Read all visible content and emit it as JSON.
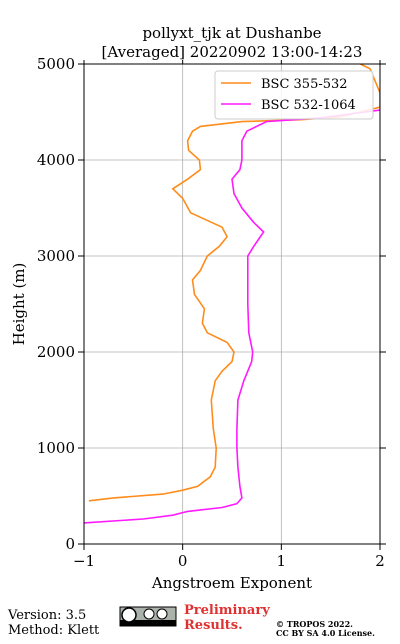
{
  "chart_data": {
    "type": "line",
    "title": "pollyxt_tjk at Dushanbe",
    "subtitle": "[Averaged] 20220902 13:00-14:23",
    "x_label": "Angstroem Exponent",
    "y_label": "Height (m)",
    "xlim": [
      -1,
      2
    ],
    "xticks": [
      {
        "value": -1,
        "label": "−1"
      },
      0,
      1,
      2
    ],
    "ylim": [
      0,
      5000
    ],
    "yticks": [
      0,
      1000,
      2000,
      3000,
      4000,
      5000
    ],
    "grid": true,
    "legend": "upper right",
    "series": [
      {
        "name": "BSC 355-532",
        "color": "#ff8c1a",
        "heights": [
          450,
          480,
          520,
          560,
          600,
          700,
          800,
          1000,
          1200,
          1500,
          1700,
          1800,
          1900,
          2000,
          2100,
          2200,
          2300,
          2450,
          2600,
          2750,
          2850,
          3000,
          3100,
          3200,
          3300,
          3450,
          3600,
          3700,
          3800,
          3900,
          4000,
          4100,
          4200,
          4300,
          4350,
          4400,
          4420,
          4450,
          4500,
          4550,
          4700,
          4950,
          5000
        ],
        "values": [
          -0.95,
          -0.7,
          -0.2,
          0.0,
          0.15,
          0.28,
          0.33,
          0.34,
          0.31,
          0.29,
          0.33,
          0.4,
          0.5,
          0.52,
          0.45,
          0.25,
          0.2,
          0.22,
          0.12,
          0.1,
          0.18,
          0.25,
          0.37,
          0.45,
          0.4,
          0.08,
          0.0,
          -0.1,
          0.05,
          0.18,
          0.17,
          0.06,
          0.05,
          0.1,
          0.18,
          0.6,
          1.2,
          1.6,
          1.8,
          2.0,
          2.0,
          1.9,
          1.8
        ]
      },
      {
        "name": "BSC 532-1064",
        "color": "#ff1aff",
        "heights": [
          220,
          260,
          300,
          340,
          380,
          420,
          480,
          600,
          800,
          1000,
          1200,
          1500,
          1700,
          1900,
          2000,
          2200,
          2500,
          2800,
          3000,
          3100,
          3250,
          3350,
          3500,
          3650,
          3800,
          3900,
          4000,
          4200,
          4300,
          4400,
          4440,
          4480,
          4520
        ],
        "values": [
          -1.0,
          -0.4,
          -0.1,
          0.05,
          0.4,
          0.55,
          0.6,
          0.58,
          0.56,
          0.55,
          0.55,
          0.56,
          0.62,
          0.7,
          0.71,
          0.67,
          0.66,
          0.66,
          0.66,
          0.72,
          0.82,
          0.72,
          0.6,
          0.52,
          0.5,
          0.58,
          0.6,
          0.6,
          0.65,
          0.85,
          1.4,
          1.7,
          2.0
        ]
      }
    ]
  },
  "footer": {
    "version": "Version: 3.5",
    "method": "Method: Klett",
    "status": "Preliminary Results.",
    "copyright": "© TROPOS 2022.",
    "license": "CC BY SA 4.0 License."
  }
}
